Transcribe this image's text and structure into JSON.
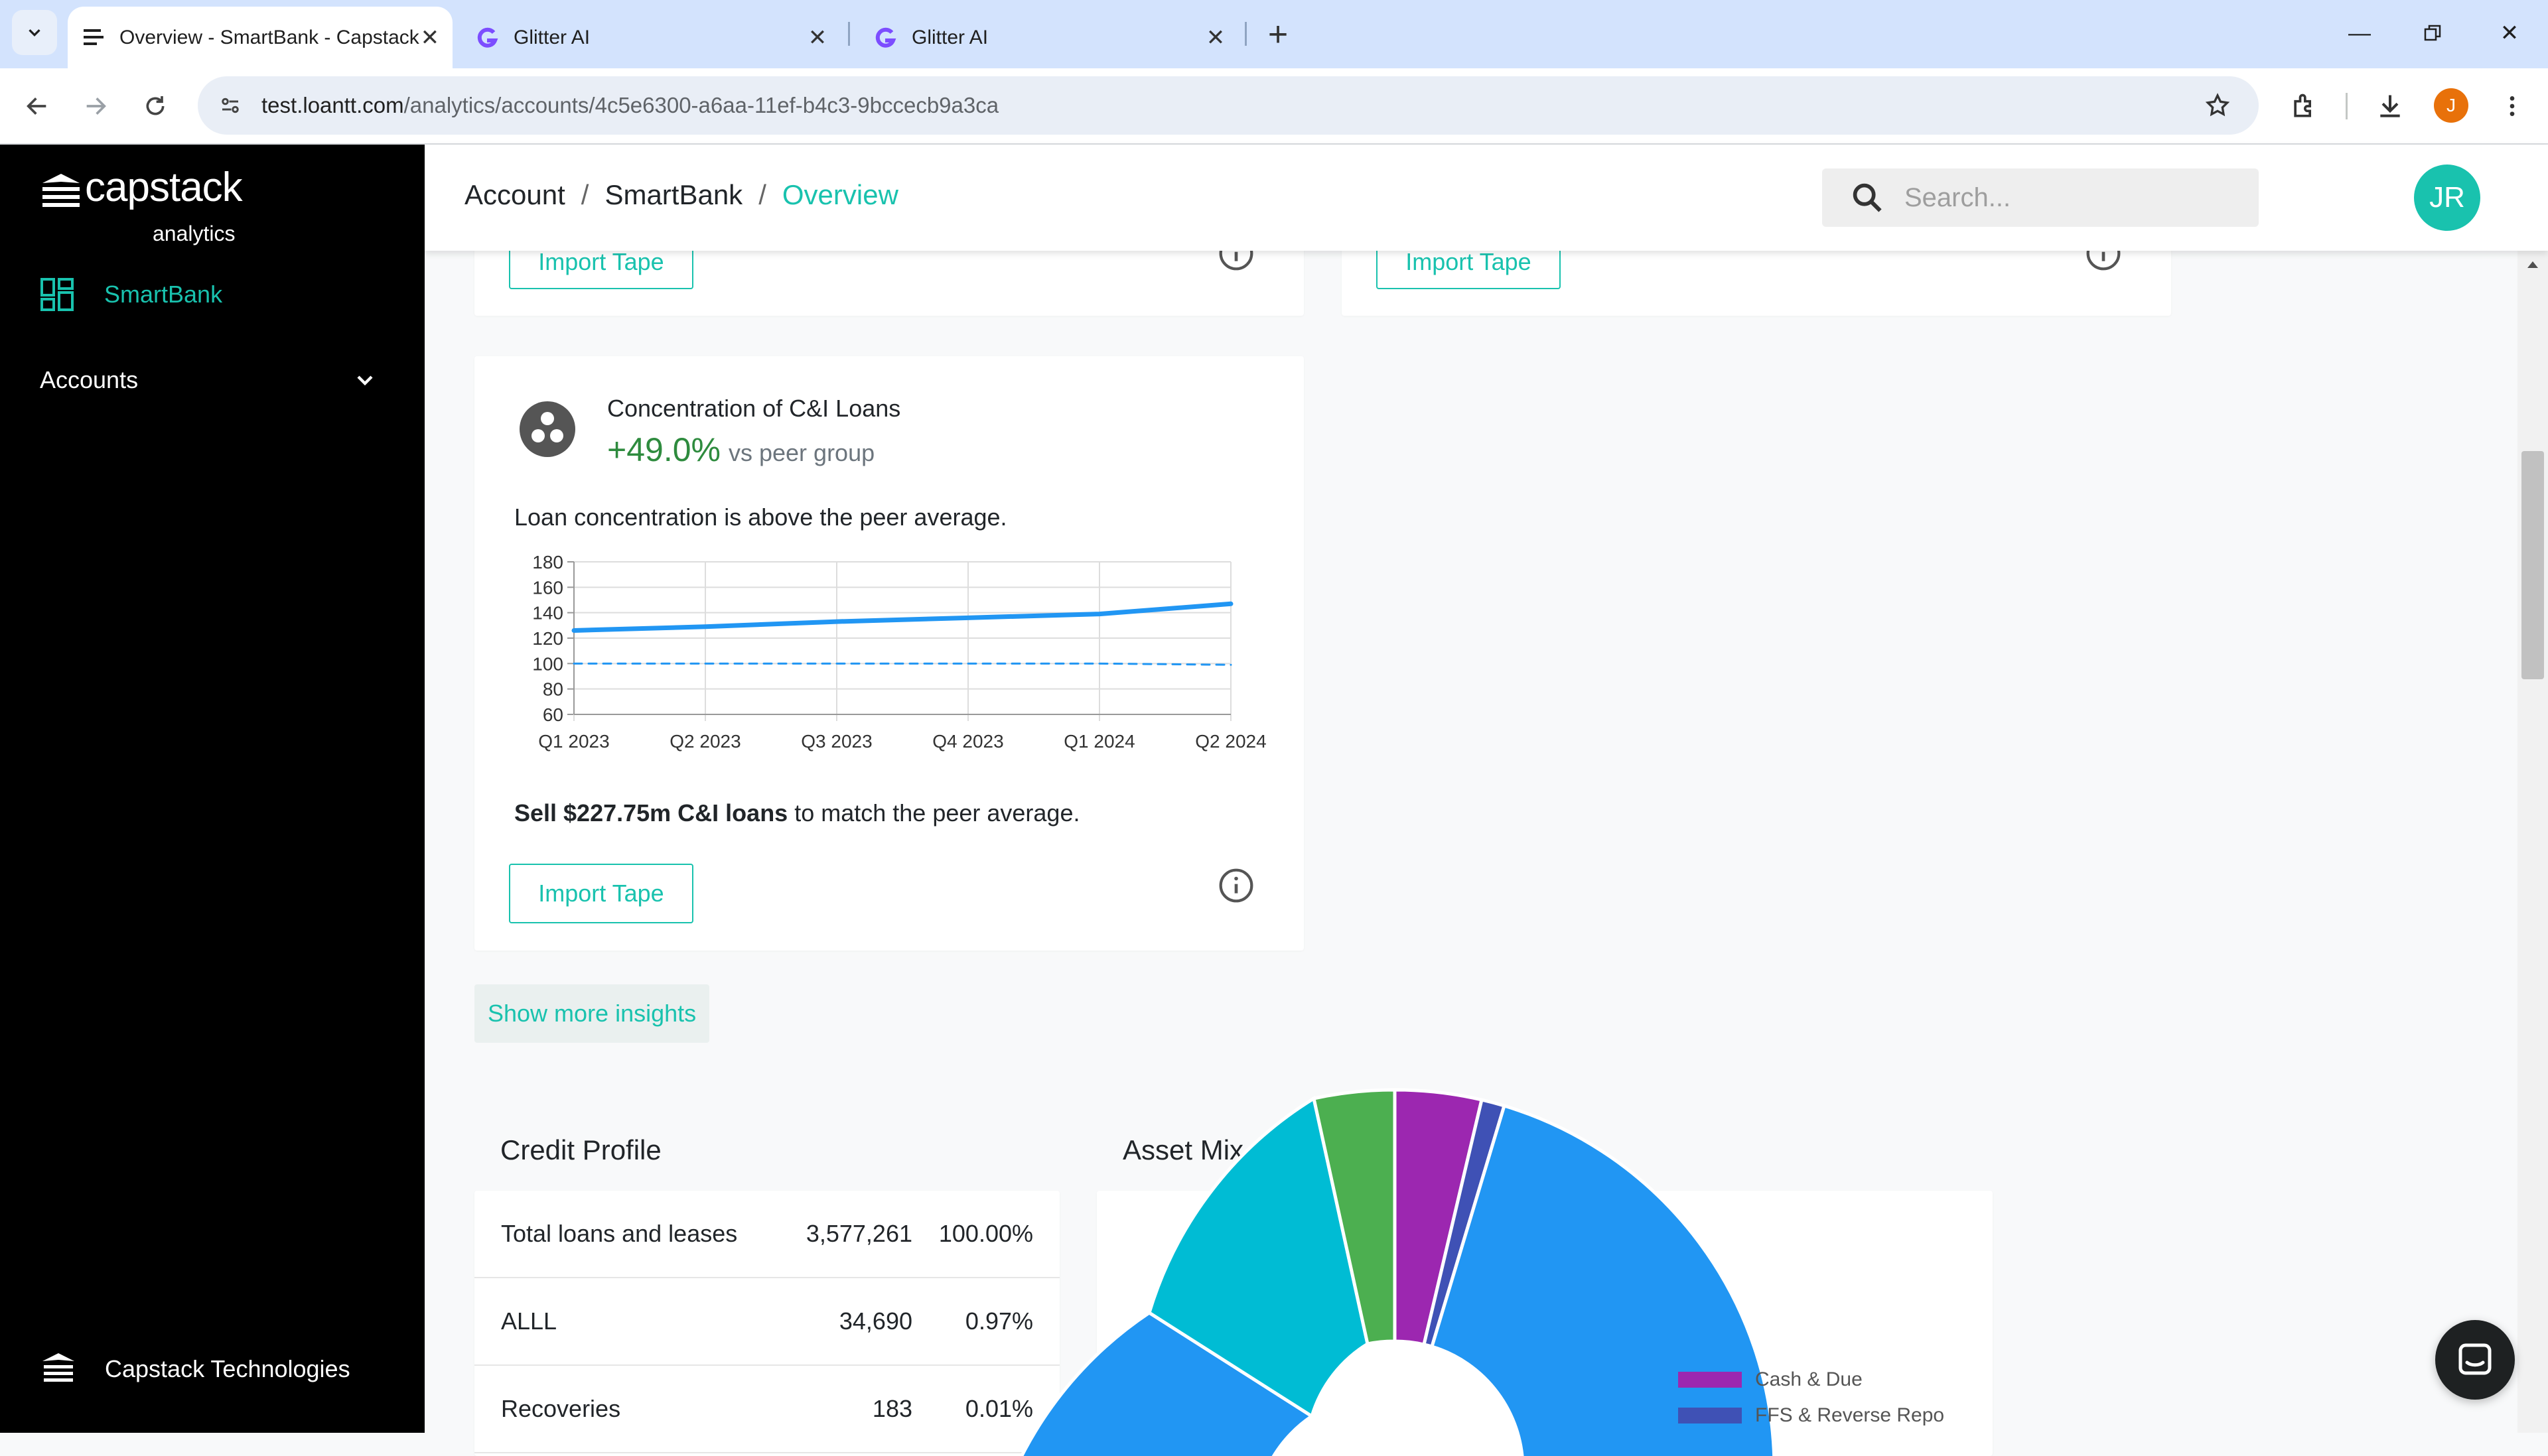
{
  "browser": {
    "tabs": [
      {
        "title": "Overview - SmartBank - Capstack",
        "active": true
      },
      {
        "title": "Glitter AI",
        "active": false
      },
      {
        "title": "Glitter AI",
        "active": false
      }
    ],
    "url_host": "test.loantt.com",
    "url_path": "/analytics/accounts/4c5e6300-a6aa-11ef-b4c3-9bccecb9a3ca",
    "profile_initial": "J"
  },
  "sidebar": {
    "brand_name": "capstack",
    "brand_sub": "analytics",
    "active_item": "SmartBank",
    "accounts_label": "Accounts",
    "footer_label": "Capstack Technologies"
  },
  "header": {
    "breadcrumb": [
      "Account",
      "SmartBank",
      "Overview"
    ],
    "breadcrumb_sep": "/",
    "search_placeholder": "Search...",
    "avatar_initials": "JR"
  },
  "top_cards": {
    "import_label": "Import Tape"
  },
  "insight": {
    "title": "Concentration of C&I Loans",
    "value": "+49.0%",
    "vs_label": "vs peer group",
    "description": "Loan concentration is above the peer average.",
    "action_bold": "Sell $227.75m C&I loans",
    "action_rest": " to match the peer average.",
    "import_label": "Import Tape"
  },
  "chart_data": {
    "type": "line",
    "categories": [
      "Q1 2023",
      "Q2 2023",
      "Q3 2023",
      "Q4 2023",
      "Q1 2024",
      "Q2 2024"
    ],
    "y_ticks": [
      60,
      80,
      100,
      120,
      140,
      160,
      180
    ],
    "ylim": [
      60,
      180
    ],
    "series": [
      {
        "style": "solid",
        "color": "#2196f3",
        "values": [
          126,
          129,
          133,
          136,
          139,
          147
        ]
      },
      {
        "style": "dashed",
        "color": "#2196f3",
        "values": [
          100,
          100,
          100,
          100,
          100,
          99
        ]
      }
    ],
    "grid": true
  },
  "show_more_label": "Show more insights",
  "credit_profile": {
    "title": "Credit Profile",
    "rows": [
      {
        "label": "Total loans and leases",
        "value": "3,577,261",
        "pct": "100.00%"
      },
      {
        "label": "ALLL",
        "value": "34,690",
        "pct": "0.97%"
      },
      {
        "label": "Recoveries",
        "value": "183",
        "pct": "0.01%"
      }
    ]
  },
  "asset_mix": {
    "title": "Asset Mix",
    "legend": [
      {
        "label": "Cash & Due",
        "color": "#9c27b0"
      },
      {
        "label": "FFS & Reverse Repo",
        "color": "#3f51b5"
      }
    ],
    "colors": {
      "green": "#4caf50",
      "cyan": "#00bcd4",
      "blue": "#2196f3"
    }
  },
  "colors": {
    "accent": "#19c2ae",
    "positive": "#2e8b3e"
  }
}
